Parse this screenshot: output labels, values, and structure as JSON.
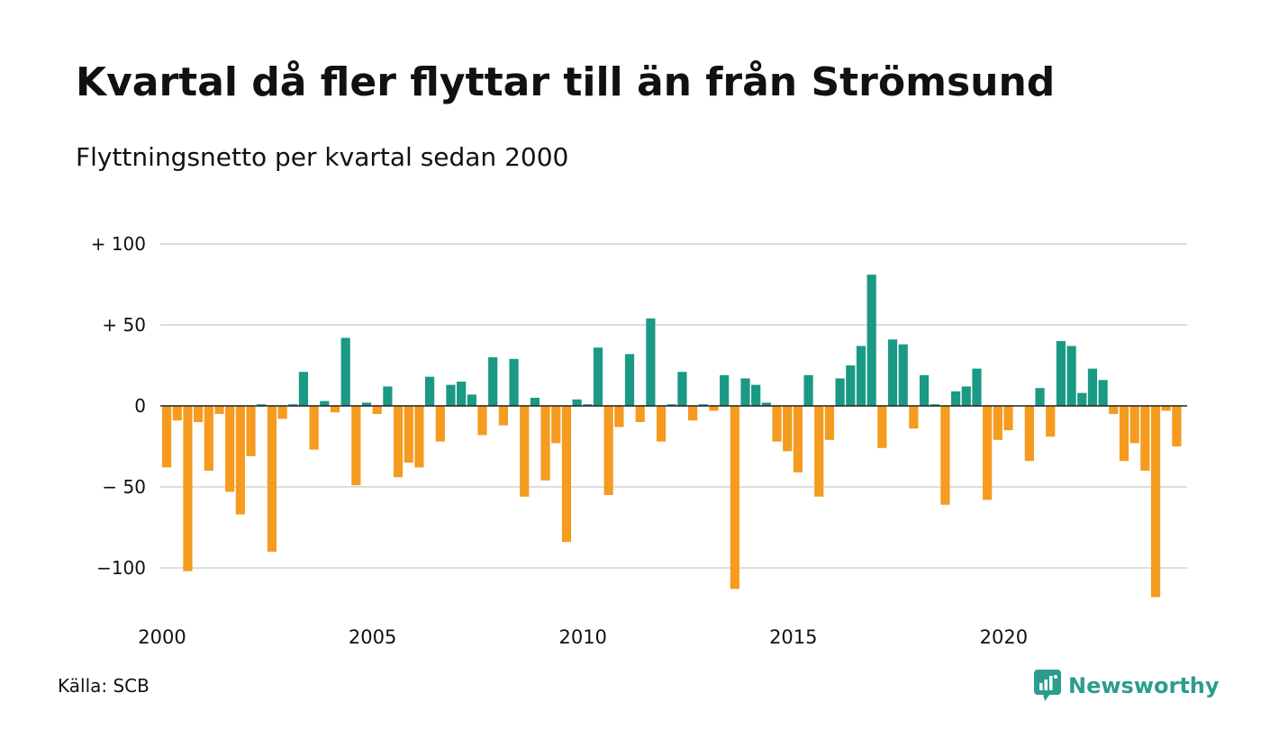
{
  "title": "Kvartal då fler flyttar till än från Strömsund",
  "subtitle": "Flyttningsnetto per kvartal sedan 2000",
  "source": "Källa: SCB",
  "brand": "Newsworthy",
  "colors": {
    "positive": "#1a9985",
    "negative": "#f59b1f",
    "grid": "#dddddd",
    "zero_line": "#222222",
    "brand": "#2a9d8f"
  },
  "chart_data": {
    "type": "bar",
    "ylim": [
      -125,
      100
    ],
    "yticks": [
      {
        "value": 100,
        "label": "+ 100"
      },
      {
        "value": 50,
        "label": "+  50"
      },
      {
        "value": 0,
        "label": "0"
      },
      {
        "value": -50,
        "label": "− 50"
      },
      {
        "value": -100,
        "label": "−100"
      }
    ],
    "xticks": [
      {
        "year": 2000,
        "label": "2000"
      },
      {
        "year": 2005,
        "label": "2005"
      },
      {
        "year": 2010,
        "label": "2010"
      },
      {
        "year": 2015,
        "label": "2015"
      },
      {
        "year": 2020,
        "label": "2020"
      }
    ],
    "x_start": "2000 Q1",
    "x_end": "2024 Q1",
    "grid": true,
    "legend": "none",
    "values": [
      -38,
      -9,
      -102,
      -10,
      -40,
      -5,
      -53,
      -67,
      -31,
      1,
      -90,
      -8,
      1,
      21,
      -27,
      3,
      -4,
      42,
      -49,
      2,
      -5,
      12,
      -44,
      -35,
      -38,
      18,
      -22,
      13,
      15,
      7,
      -18,
      30,
      -12,
      29,
      -56,
      5,
      -46,
      -23,
      -84,
      4,
      1,
      36,
      -55,
      -13,
      32,
      -10,
      54,
      -22,
      1,
      21,
      -9,
      1,
      -3,
      19,
      -113,
      17,
      13,
      2,
      -22,
      -28,
      -41,
      19,
      -56,
      -21,
      17,
      25,
      37,
      81,
      -26,
      41,
      38,
      -14,
      19,
      1,
      -61,
      9,
      12,
      23,
      -58,
      -21,
      -15,
      0,
      -34,
      11,
      -19,
      40,
      37,
      8,
      23,
      16,
      -5,
      -34,
      -23,
      -40,
      -118,
      -3,
      -25
    ]
  }
}
